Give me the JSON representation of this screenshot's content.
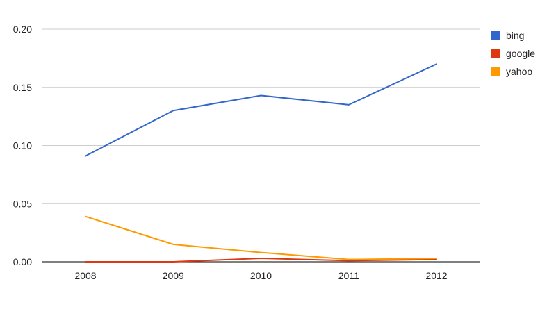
{
  "chart_data": {
    "type": "line",
    "title": "",
    "xlabel": "",
    "ylabel": "",
    "categories": [
      "2008",
      "2009",
      "2010",
      "2011",
      "2012"
    ],
    "ylim": [
      0,
      0.2
    ],
    "y_ticks": [
      "0.00",
      "0.05",
      "0.10",
      "0.15",
      "0.20"
    ],
    "grid": true,
    "legend_position": "right",
    "series": [
      {
        "name": "bing",
        "color": "#3366cc",
        "values": [
          0.091,
          0.13,
          0.143,
          0.135,
          0.17
        ]
      },
      {
        "name": "google",
        "color": "#dc3912",
        "values": [
          0.0,
          0.0,
          0.003,
          0.001,
          0.002
        ]
      },
      {
        "name": "yahoo",
        "color": "#ff9900",
        "values": [
          0.039,
          0.015,
          0.008,
          0.002,
          0.003
        ]
      }
    ]
  }
}
